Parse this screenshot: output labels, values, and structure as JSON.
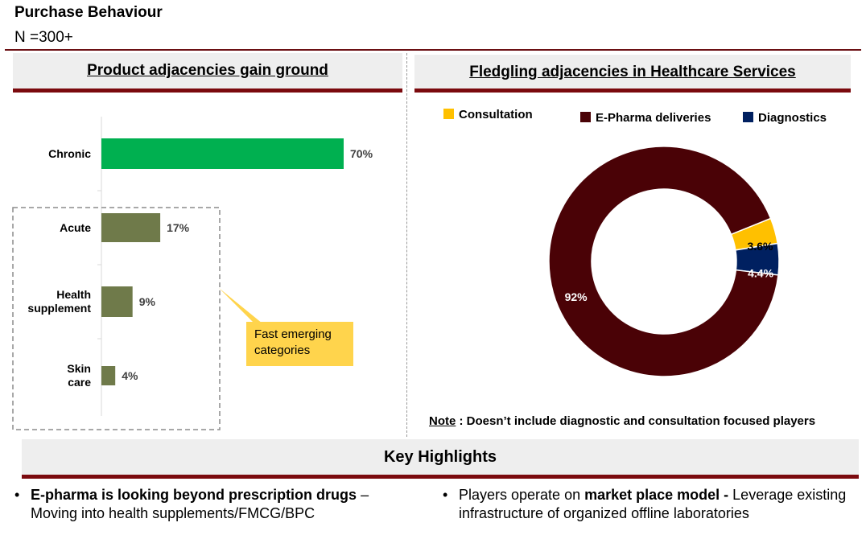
{
  "header": {
    "title": "Purchase Behaviour",
    "n_label": "N =300+"
  },
  "left_panel": {
    "title": "Product adjacencies gain ground",
    "callout": "Fast emerging categories"
  },
  "right_panel": {
    "title": "Fledgling adjacencies in Healthcare Services",
    "note_label": "Note",
    "note_text": " : Doesn’t include diagnostic and consultation focused players"
  },
  "chart_data": [
    {
      "type": "bar",
      "orientation": "horizontal",
      "categories": [
        "Chronic",
        "Acute",
        "Health supplement",
        "Skin care"
      ],
      "values": [
        70,
        17,
        9,
        4
      ],
      "value_labels": [
        "70%",
        "17%",
        "9%",
        "4%"
      ],
      "bar_colors": [
        "#00b050",
        "#6f7a4a",
        "#6f7a4a",
        "#6f7a4a"
      ],
      "xlim": [
        0,
        100
      ]
    },
    {
      "type": "pie",
      "donut": true,
      "categories": [
        "E-Pharma deliveries",
        "Consultation",
        "Diagnostics"
      ],
      "values": [
        92,
        3.6,
        4.4
      ],
      "value_labels": [
        "92%",
        "3.6%",
        "4.4%"
      ],
      "colors": [
        "#4a0206",
        "#ffc000",
        "#002060"
      ],
      "legend": [
        {
          "label": "Consultation",
          "color": "#ffc000"
        },
        {
          "label": "E-Pharma deliveries",
          "color": "#4a0206"
        },
        {
          "label": "Diagnostics",
          "color": "#002060"
        }
      ],
      "legend_position": "top"
    }
  ],
  "highlights": {
    "title": "Key Highlights",
    "bullet1_bold": "E-pharma is looking beyond prescription drugs",
    "bullet1_rest": " – Moving into health supplements/FMCG/BPC",
    "bullet2_pre": "Players operate on ",
    "bullet2_bold": "market place model -",
    "bullet2_rest": " Leverage existing infrastructure of organized offline laboratories"
  }
}
